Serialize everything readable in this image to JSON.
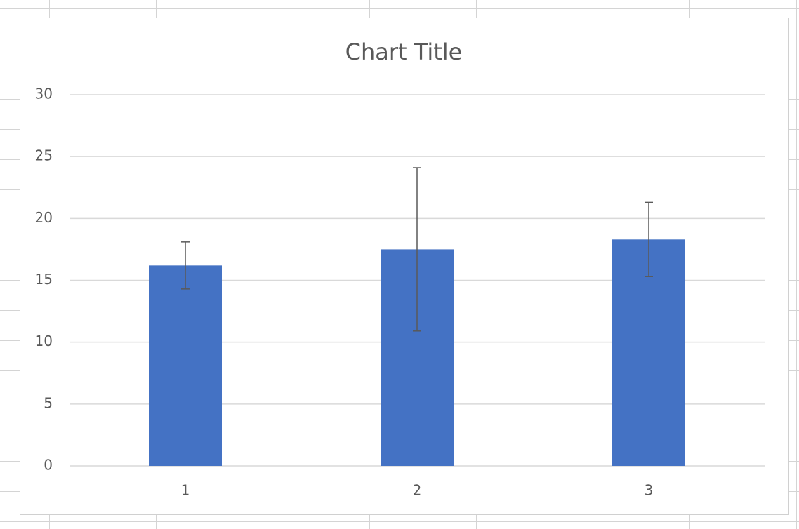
{
  "chart_data": {
    "type": "bar",
    "title": "Chart Title",
    "categories": [
      "1",
      "2",
      "3"
    ],
    "values": [
      16.2,
      17.5,
      18.3
    ],
    "errors": [
      1.9,
      6.6,
      3.0
    ],
    "color": "#4472c4",
    "ylim": [
      0,
      30
    ],
    "yticks": [
      0,
      5,
      10,
      15,
      20,
      25,
      30
    ],
    "grid": true
  }
}
